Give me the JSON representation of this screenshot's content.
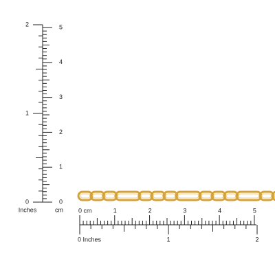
{
  "vertical_ruler": {
    "inch_labels": [
      "0",
      "1",
      "2"
    ],
    "inch_unit": "Inches",
    "cm_labels": [
      "0",
      "1",
      "2",
      "3",
      "4",
      "5"
    ],
    "cm_unit": "cm"
  },
  "horizontal_ruler": {
    "cm_labels": [
      "0 cm",
      "1",
      "2",
      "3",
      "4",
      "5"
    ],
    "inch_labels": [
      "0 Inches",
      "1",
      "2"
    ]
  }
}
